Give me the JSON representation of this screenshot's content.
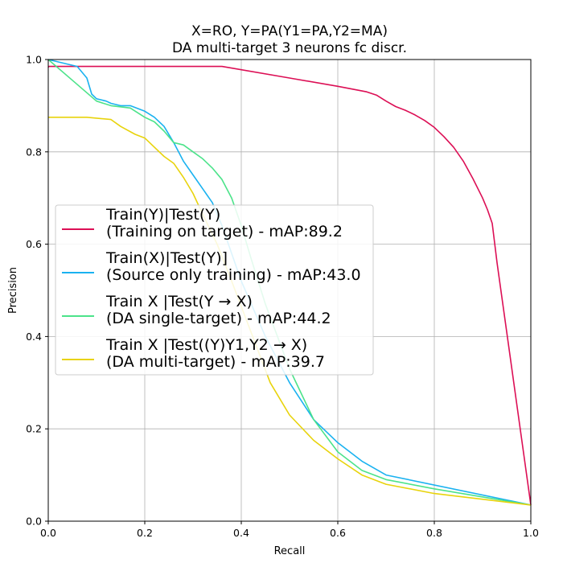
{
  "chart_data": {
    "type": "line",
    "title": [
      "X=RO, Y=PA(Y1=PA,Y2=MA)",
      "DA multi-target 3 neurons fc discr."
    ],
    "xlabel": "Recall",
    "ylabel": "Precision",
    "xlim": [
      0,
      1
    ],
    "ylim": [
      0,
      1
    ],
    "x_ticks": [
      "0.0",
      "0.2",
      "0.4",
      "0.6",
      "0.8",
      "1.0"
    ],
    "y_ticks": [
      "0.0",
      "0.2",
      "0.4",
      "0.6",
      "0.8",
      "1.0"
    ],
    "grid": true,
    "legend_position": "center-left",
    "series": [
      {
        "name": [
          "Train(Y)|Test(Y)",
          "(Training on target) - mAP:89.2"
        ],
        "color": "#dc0f55",
        "x": [
          0,
          0.001,
          0.36,
          0.5,
          0.6,
          0.66,
          0.68,
          0.7,
          0.72,
          0.74,
          0.76,
          0.78,
          0.8,
          0.82,
          0.84,
          0.86,
          0.88,
          0.9,
          0.91,
          0.92,
          0.93,
          1.0
        ],
        "y": [
          0.983,
          0.985,
          0.985,
          0.96,
          0.942,
          0.93,
          0.923,
          0.91,
          0.898,
          0.89,
          0.88,
          0.868,
          0.853,
          0.833,
          0.81,
          0.78,
          0.742,
          0.7,
          0.675,
          0.645,
          0.56,
          0.035
        ]
      },
      {
        "name": [
          "Train(X)|Test(Y)]",
          "(Source only training) - mAP:43.0"
        ],
        "color": "#1ab2f0",
        "x": [
          0,
          0.06,
          0.08,
          0.09,
          0.1,
          0.12,
          0.13,
          0.15,
          0.17,
          0.2,
          0.22,
          0.24,
          0.26,
          0.28,
          0.3,
          0.32,
          0.34,
          0.36,
          0.38,
          0.4,
          0.45,
          0.5,
          0.55,
          0.6,
          0.65,
          0.7,
          1.0
        ],
        "y": [
          1.0,
          0.985,
          0.96,
          0.925,
          0.915,
          0.91,
          0.905,
          0.9,
          0.9,
          0.888,
          0.875,
          0.855,
          0.82,
          0.78,
          0.75,
          0.72,
          0.69,
          0.64,
          0.58,
          0.52,
          0.4,
          0.3,
          0.22,
          0.17,
          0.13,
          0.1,
          0.035
        ]
      },
      {
        "name": [
          "Train X |Test(Y → X)",
          "(DA single-target) - mAP:44.2"
        ],
        "color": "#4ce38a",
        "x": [
          0,
          0.05,
          0.1,
          0.13,
          0.17,
          0.2,
          0.22,
          0.24,
          0.26,
          0.28,
          0.3,
          0.32,
          0.34,
          0.36,
          0.38,
          0.4,
          0.42,
          0.45,
          0.5,
          0.55,
          0.6,
          0.65,
          0.7,
          0.8,
          1.0
        ],
        "y": [
          1.0,
          0.955,
          0.91,
          0.9,
          0.895,
          0.875,
          0.865,
          0.845,
          0.82,
          0.815,
          0.8,
          0.785,
          0.765,
          0.74,
          0.7,
          0.64,
          0.57,
          0.47,
          0.33,
          0.22,
          0.15,
          0.11,
          0.09,
          0.07,
          0.035
        ]
      },
      {
        "name": [
          "Train X |Test((Y)Y1,Y2 → X)",
          "(DA multi-target) - mAP:39.7"
        ],
        "color": "#e8d30c",
        "x": [
          0,
          0.04,
          0.08,
          0.13,
          0.15,
          0.18,
          0.2,
          0.22,
          0.24,
          0.26,
          0.28,
          0.3,
          0.32,
          0.35,
          0.38,
          0.42,
          0.46,
          0.5,
          0.55,
          0.6,
          0.65,
          0.7,
          0.8,
          1.0
        ],
        "y": [
          0.875,
          0.875,
          0.875,
          0.87,
          0.855,
          0.838,
          0.83,
          0.81,
          0.79,
          0.775,
          0.745,
          0.71,
          0.665,
          0.6,
          0.52,
          0.41,
          0.3,
          0.23,
          0.175,
          0.135,
          0.1,
          0.08,
          0.06,
          0.035
        ]
      }
    ]
  }
}
